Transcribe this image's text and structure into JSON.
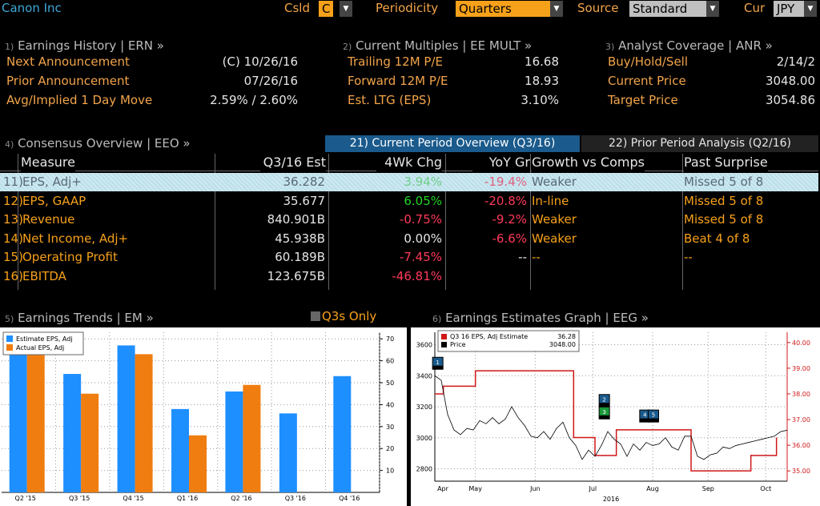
{
  "header": {
    "company": "Canon Inc",
    "csld_label": "Csld",
    "csld_value": "C",
    "periodicity_label": "Periodicity",
    "periodicity_value": "Quarters",
    "source_label": "Source",
    "source_value": "Standard",
    "cur_label": "Cur",
    "cur_value": "JPY"
  },
  "earnings_history": {
    "num": "1)",
    "title": "Earnings History | ERN »",
    "rows": [
      {
        "label": "Next Announcement",
        "value": "(C)  10/26/16"
      },
      {
        "label": "Prior Announcement",
        "value": "07/26/16"
      },
      {
        "label": "Avg/Implied 1 Day Move",
        "value": "2.59% / 2.60%"
      }
    ]
  },
  "current_multiples": {
    "num": "2)",
    "title": "Current Multiples | EE MULT »",
    "rows": [
      {
        "label": "Trailing 12M P/E",
        "value": "16.68"
      },
      {
        "label": "Forward 12M P/E",
        "value": "18.93"
      },
      {
        "label": "Est. LTG (EPS)",
        "value": "3.10%"
      }
    ]
  },
  "analyst_coverage": {
    "num": "3)",
    "title": "Analyst Coverage | ANR »",
    "rows": [
      {
        "label": "Buy/Hold/Sell",
        "value": "2/14/2"
      },
      {
        "label": "Current Price",
        "value": "3048.00"
      },
      {
        "label": "Target Price",
        "value": "3054.86"
      }
    ]
  },
  "consensus": {
    "num": "4)",
    "title": "Consensus Overview | EEO »",
    "tab_current": "21) Current Period Overview (Q3/16)",
    "tab_prior": "22) Prior Period Analysis (Q2/16)",
    "columns": [
      "Measure",
      "Q3/16 Est",
      "4Wk Chg",
      "YoY Gr",
      "Growth vs Comps",
      "Past Surprise"
    ],
    "rows": [
      {
        "num": "11)",
        "measure": "EPS, Adj+",
        "est": "36.282",
        "chg": "3.94%",
        "yoy": "-19.4%",
        "comps": "Weaker",
        "surprise": "Missed 5 of 8"
      },
      {
        "num": "12)",
        "measure": "EPS, GAAP",
        "est": "35.677",
        "chg": "6.05%",
        "yoy": "-20.8%",
        "comps": "In-line",
        "surprise": "Missed 5 of 8"
      },
      {
        "num": "13)",
        "measure": "Revenue",
        "est": "840.901B",
        "chg": "-0.75%",
        "yoy": "-9.2%",
        "comps": "Weaker",
        "surprise": "Missed 5 of 8"
      },
      {
        "num": "14)",
        "measure": "Net Income, Adj+",
        "est": "45.938B",
        "chg": "0.00%",
        "yoy": "-6.6%",
        "comps": "Weaker",
        "surprise": "Beat 4 of 8"
      },
      {
        "num": "15)",
        "measure": "Operating Profit",
        "est": "60.189B",
        "chg": "-7.45%",
        "yoy": "--",
        "comps": "--",
        "surprise": "--"
      },
      {
        "num": "16)",
        "measure": "EBITDA",
        "est": "123.675B",
        "chg": "-46.81%",
        "yoy": "",
        "comps": "",
        "surprise": ""
      }
    ]
  },
  "earnings_trends": {
    "num": "5)",
    "title": "Earnings Trends | EM »",
    "q3s_label": "Q3s Only"
  },
  "earnings_estimates": {
    "num": "6)",
    "title": "Earnings Estimates Graph | EEG »"
  },
  "colors": {
    "estimate": "#1e8fff",
    "actual": "#f07d10",
    "price": "#000000",
    "estimate_line": "#d01818",
    "tab_active": "#1a5a8c"
  },
  "chart_data": [
    {
      "type": "bar",
      "legend": [
        "Estimate EPS, Adj",
        "Actual EPS, Adj"
      ],
      "categories": [
        "Q2 '15",
        "Q3 '15",
        "Q4 '15",
        "Q1 '16",
        "Q2 '16",
        "Q3 '16",
        "Q4 '16"
      ],
      "series": [
        {
          "name": "Estimate EPS, Adj",
          "values": [
            70,
            54,
            67,
            38,
            46,
            36,
            53
          ]
        },
        {
          "name": "Actual EPS, Adj",
          "values": [
            65,
            45,
            63,
            26,
            49,
            null,
            null
          ]
        }
      ],
      "yticks": [
        10,
        20,
        30,
        40,
        50,
        60,
        70
      ],
      "ylim": [
        0,
        73
      ]
    },
    {
      "type": "line",
      "legend": [
        {
          "name": "Q3 16 EPS, Adj Estimate",
          "value": "36.28"
        },
        {
          "name": "Price",
          "value": "3048.00"
        }
      ],
      "x_ticks": [
        "Apr",
        "May",
        "Jun",
        "Jul",
        "Aug",
        "Sep",
        "Oct"
      ],
      "x_year": "2016",
      "left_ticks": [
        "2800",
        "3000",
        "3200",
        "3400",
        "3600"
      ],
      "right_ticks": [
        "35.00",
        "36.00",
        "37.00",
        "38.00",
        "39.00",
        "40.00"
      ],
      "markers": [
        "1",
        "2",
        "3",
        "4",
        "5"
      ],
      "left_range": [
        2720,
        3680
      ],
      "right_range": [
        34.6,
        40.4
      ],
      "estimate_step": [
        [
          0.0,
          38.0
        ],
        [
          0.04,
          38.0
        ],
        [
          0.04,
          38.3
        ],
        [
          0.19,
          38.3
        ],
        [
          0.19,
          38.9
        ],
        [
          0.65,
          38.9
        ],
        [
          0.65,
          36.3
        ],
        [
          0.75,
          36.3
        ],
        [
          0.75,
          35.6
        ],
        [
          0.85,
          35.6
        ],
        [
          0.85,
          36.6
        ],
        [
          0.87,
          36.6
        ],
        [
          0.87,
          36.6
        ],
        [
          1.2,
          36.6
        ],
        [
          1.2,
          35.0
        ],
        [
          1.48,
          35.0
        ],
        [
          1.48,
          35.6
        ],
        [
          1.6,
          35.6
        ],
        [
          1.6,
          36.3
        ],
        [
          1.8,
          36.3
        ]
      ],
      "price": [
        [
          0.0,
          3400
        ],
        [
          0.03,
          3370
        ],
        [
          0.06,
          3150
        ],
        [
          0.09,
          3050
        ],
        [
          0.12,
          3020
        ],
        [
          0.15,
          3060
        ],
        [
          0.18,
          3050
        ],
        [
          0.21,
          3110
        ],
        [
          0.24,
          3090
        ],
        [
          0.27,
          3130
        ],
        [
          0.3,
          3090
        ],
        [
          0.33,
          3120
        ],
        [
          0.36,
          3200
        ],
        [
          0.39,
          3130
        ],
        [
          0.42,
          3080
        ],
        [
          0.45,
          3010
        ],
        [
          0.48,
          3000
        ],
        [
          0.51,
          3040
        ],
        [
          0.54,
          2990
        ],
        [
          0.57,
          3060
        ],
        [
          0.6,
          3100
        ],
        [
          0.63,
          3000
        ],
        [
          0.66,
          2950
        ],
        [
          0.69,
          2860
        ],
        [
          0.72,
          2920
        ],
        [
          0.75,
          2880
        ],
        [
          0.78,
          2950
        ],
        [
          0.81,
          3040
        ],
        [
          0.84,
          2990
        ],
        [
          0.87,
          2960
        ],
        [
          0.9,
          2880
        ],
        [
          0.93,
          2960
        ],
        [
          0.96,
          2920
        ],
        [
          0.99,
          2970
        ],
        [
          1.02,
          2950
        ],
        [
          1.05,
          2960
        ],
        [
          1.08,
          3000
        ],
        [
          1.11,
          2940
        ],
        [
          1.14,
          2920
        ],
        [
          1.17,
          3010
        ],
        [
          1.2,
          3010
        ],
        [
          1.23,
          2880
        ],
        [
          1.26,
          2860
        ],
        [
          1.29,
          2890
        ],
        [
          1.32,
          2900
        ],
        [
          1.35,
          2940
        ],
        [
          1.38,
          2930
        ],
        [
          1.41,
          2950
        ],
        [
          1.44,
          2960
        ],
        [
          1.47,
          2970
        ],
        [
          1.5,
          2980
        ],
        [
          1.53,
          2990
        ],
        [
          1.56,
          3000
        ],
        [
          1.59,
          3010
        ],
        [
          1.62,
          3040
        ],
        [
          1.65,
          3048
        ]
      ]
    }
  ]
}
